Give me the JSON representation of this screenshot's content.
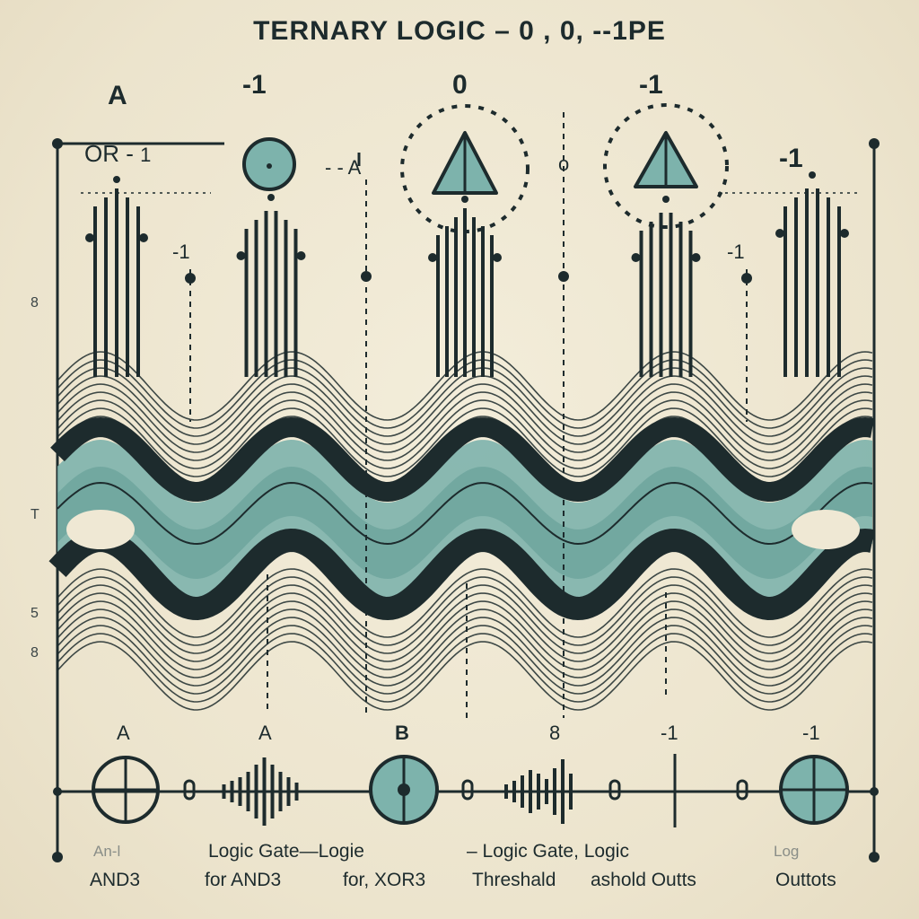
{
  "title": "TERNARY LOGIC – 0 , 0, --1PE",
  "top_labels": {
    "a": "A",
    "or": "OR -",
    "or_suffix": "1",
    "neg1_left": "-1",
    "zero": "0",
    "neg1_right": "-1",
    "neg1_far": "-1",
    "dash_a": "- - A",
    "o_mid": "o"
  },
  "side_labels": {
    "left_top": "8",
    "left_mid": "T",
    "left_low": "5",
    "left_bottom": "8",
    "neg1_small_left": "-1",
    "neg1_small_right": "-1"
  },
  "bottom_labels": [
    "A",
    "A",
    "B",
    "8",
    "-1",
    "-1"
  ],
  "footer": {
    "ghost1": "An-l",
    "and3": "AND3",
    "gate1": "Logic Gate—Logie",
    "for_and3": "for AND3",
    "for_xor3": "for, XOR3",
    "gate2": "– Logic Gate, Logic",
    "ghost2": "Log",
    "threshold": "Threshald",
    "ashold": "ashold Outts",
    "outtots": "Outtots"
  },
  "colors": {
    "ink": "#1d2b2d",
    "teal": "#7db3ac",
    "teal_dark": "#5f9a93",
    "paper": "#efe8d4"
  }
}
